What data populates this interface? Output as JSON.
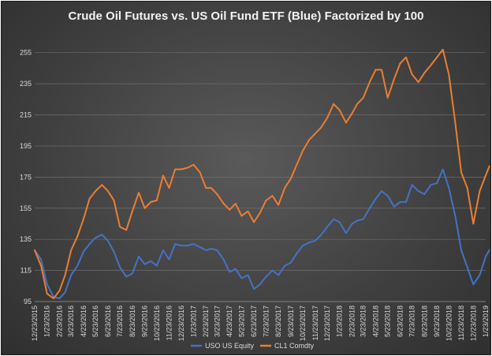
{
  "chart_data": {
    "type": "line",
    "title": "Crude Oil Futures vs. US Oil Fund ETF (Blue) Factorized by 100",
    "xlabel": "",
    "ylabel": "",
    "ylim": [
      95,
      265
    ],
    "yticks": [
      95,
      115,
      135,
      155,
      175,
      195,
      215,
      235,
      255
    ],
    "grid": true,
    "legend_position": "bottom",
    "x_tick_labels": [
      "12/23/2015",
      "1/23/2016",
      "2/23/2016",
      "3/23/2016",
      "4/23/2016",
      "5/23/2016",
      "6/23/2016",
      "7/23/2016",
      "8/23/2016",
      "9/23/2016",
      "10/23/2016",
      "11/23/2016",
      "12/23/2016",
      "1/23/2017",
      "2/23/2017",
      "3/23/2017",
      "4/23/2017",
      "5/23/2017",
      "6/23/2017",
      "7/23/2017",
      "8/23/2017",
      "9/23/2017",
      "10/23/2017",
      "11/23/2017",
      "12/23/2017",
      "1/23/2018",
      "2/23/2018",
      "3/23/2018",
      "4/23/2018",
      "5/23/2018",
      "6/23/2018",
      "7/23/2018",
      "8/23/2018",
      "9/23/2018",
      "10/23/2018",
      "11/23/2018",
      "12/23/2018",
      "1/23/2019"
    ],
    "x": [
      "12/23/2015",
      "1/8/2016",
      "1/23/2016",
      "2/8/2016",
      "2/23/2016",
      "3/8/2016",
      "3/23/2016",
      "4/8/2016",
      "4/23/2016",
      "5/8/2016",
      "5/23/2016",
      "6/8/2016",
      "6/23/2016",
      "7/8/2016",
      "7/23/2016",
      "8/8/2016",
      "8/23/2016",
      "9/8/2016",
      "9/23/2016",
      "10/8/2016",
      "10/23/2016",
      "11/8/2016",
      "11/23/2016",
      "12/8/2016",
      "12/23/2016",
      "1/8/2017",
      "1/23/2017",
      "2/8/2017",
      "2/23/2017",
      "3/8/2017",
      "3/23/2017",
      "4/8/2017",
      "4/23/2017",
      "5/8/2017",
      "5/23/2017",
      "6/8/2017",
      "6/23/2017",
      "7/8/2017",
      "7/23/2017",
      "8/8/2017",
      "8/23/2017",
      "9/8/2017",
      "9/23/2017",
      "10/8/2017",
      "10/23/2017",
      "11/8/2017",
      "11/23/2017",
      "12/8/2017",
      "12/23/2017",
      "1/8/2018",
      "1/23/2018",
      "2/8/2018",
      "2/23/2018",
      "3/8/2018",
      "3/23/2018",
      "4/8/2018",
      "4/23/2018",
      "5/8/2018",
      "5/23/2018",
      "6/8/2018",
      "6/23/2018",
      "7/8/2018",
      "7/23/2018",
      "8/8/2018",
      "8/23/2018",
      "9/8/2018",
      "9/23/2018",
      "10/8/2018",
      "10/23/2018",
      "11/8/2018",
      "11/23/2018",
      "12/8/2018",
      "12/23/2018",
      "1/8/2019",
      "1/23/2019",
      "2/1/2019"
    ],
    "series": [
      {
        "name": "USO US Equity",
        "color": "#4472c4",
        "values": [
          128,
          122,
          106,
          98,
          97,
          101,
          112,
          118,
          127,
          132,
          136,
          138,
          134,
          127,
          117,
          111,
          113,
          124,
          119,
          121,
          118,
          128,
          122,
          132,
          131,
          131,
          132,
          130,
          128,
          129,
          128,
          122,
          114,
          116,
          110,
          112,
          103,
          106,
          111,
          115,
          112,
          118,
          120,
          126,
          131,
          133,
          134,
          138,
          143,
          148,
          146,
          139,
          145,
          147,
          148,
          155,
          161,
          166,
          163,
          156,
          159,
          159,
          170,
          166,
          164,
          170,
          171,
          180,
          168,
          150,
          128,
          117,
          106,
          112,
          124,
          128
        ]
      },
      {
        "name": "CL1 Comdty",
        "color": "#ed7d31",
        "values": [
          128,
          118,
          100,
          97,
          102,
          112,
          128,
          137,
          148,
          161,
          166,
          170,
          166,
          160,
          143,
          141,
          153,
          165,
          155,
          159,
          160,
          176,
          168,
          180,
          180,
          181,
          183,
          178,
          168,
          168,
          164,
          158,
          154,
          158,
          150,
          153,
          146,
          152,
          160,
          163,
          157,
          168,
          174,
          183,
          192,
          199,
          203,
          207,
          213,
          222,
          218,
          210,
          216,
          222,
          226,
          236,
          244,
          244,
          226,
          238,
          248,
          252,
          241,
          236,
          242,
          247,
          252,
          257,
          241,
          210,
          178,
          168,
          145,
          166,
          176,
          182
        ]
      }
    ]
  }
}
